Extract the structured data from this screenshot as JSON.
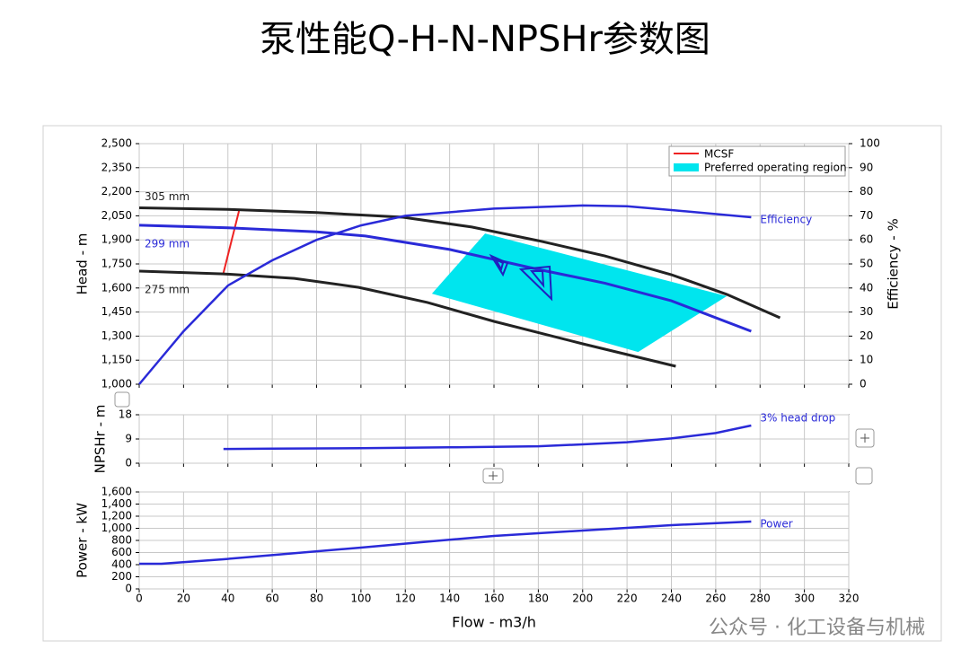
{
  "title": "泵性能Q-H-N-NPSHr参数图",
  "watermark": "公众号 · 化工设备与机械",
  "chart_data": [
    {
      "type": "line",
      "ylabel": "Head - m",
      "y2label": "Efficiency - %",
      "xlim": [
        0,
        320
      ],
      "ylim": [
        1000,
        2500
      ],
      "yticks": [
        {
          "value": 1000,
          "label": "1,000"
        },
        {
          "value": 1150,
          "label": "1,150"
        },
        {
          "value": 1300,
          "label": "1,300"
        },
        {
          "value": 1450,
          "label": "1,450"
        },
        {
          "value": 1600,
          "label": "1,600"
        },
        {
          "value": 1750,
          "label": "1,750"
        },
        {
          "value": 1900,
          "label": "1,900"
        },
        {
          "value": 2050,
          "label": "2,050"
        },
        {
          "value": 2200,
          "label": "2,200"
        },
        {
          "value": 2350,
          "label": "2,350"
        },
        {
          "value": 2500,
          "label": "2,500"
        }
      ],
      "y2lim": [
        0,
        100
      ],
      "y2ticks": [
        0,
        10,
        20,
        30,
        40,
        50,
        60,
        70,
        80,
        90,
        100
      ],
      "grid": true,
      "legend": "upper right",
      "region": {
        "name": "Preferred operating region",
        "color": "#00e5ee",
        "x": [
          156,
          265,
          225,
          132
        ],
        "values": [
          1940,
          1549,
          1201,
          1565
        ]
      },
      "mcsf": {
        "name": "MCSF",
        "color": "#ee2222",
        "x": [
          38,
          45
        ],
        "values": [
          1694,
          2080
        ]
      },
      "series": [
        {
          "name": "305 mm",
          "color": "#222222",
          "x": [
            0,
            40,
            80,
            119,
            150,
            180,
            210,
            240,
            265,
            289
          ],
          "values": [
            2100,
            2090,
            2070,
            2041,
            1980,
            1895,
            1800,
            1683,
            1560,
            1414
          ]
        },
        {
          "name": "299 mm",
          "color": "#2a2ad8",
          "x": [
            0,
            40,
            80,
            102,
            140,
            180,
            210,
            240,
            276
          ],
          "values": [
            1991,
            1975,
            1950,
            1924,
            1840,
            1716,
            1630,
            1520,
            1330
          ]
        },
        {
          "name": "275 mm",
          "color": "#222222",
          "x": [
            0,
            38,
            70,
            99,
            130,
            160,
            200,
            242
          ],
          "values": [
            1705,
            1688,
            1660,
            1604,
            1510,
            1392,
            1252,
            1112
          ]
        },
        {
          "name": "Efficiency",
          "color": "#2a2ad8",
          "axis": "y2",
          "x": [
            0,
            10,
            20,
            40,
            60,
            80,
            100,
            120,
            160,
            200,
            220,
            240,
            276
          ],
          "values": [
            0,
            11,
            22,
            41,
            51.5,
            60,
            66,
            70,
            73,
            74.3,
            74,
            72.4,
            69.4
          ]
        }
      ]
    },
    {
      "type": "line",
      "ylabel": "NPSHr - m",
      "xlim": [
        0,
        320
      ],
      "ylim": [
        0,
        18
      ],
      "yticks": [
        0,
        9,
        18
      ],
      "grid": true,
      "series": [
        {
          "name": "3% head drop",
          "color": "#2a2ad8",
          "x": [
            38,
            60,
            100,
            140,
            180,
            200,
            220,
            240,
            260,
            276
          ],
          "values": [
            5.3,
            5.4,
            5.6,
            5.9,
            6.3,
            7,
            7.8,
            9.2,
            11.2,
            14
          ]
        }
      ]
    },
    {
      "type": "line",
      "xlabel": "Flow - m3/h",
      "ylabel": "Power - kW",
      "xlim": [
        0,
        320
      ],
      "xticks": [
        0,
        20,
        40,
        60,
        80,
        100,
        120,
        140,
        160,
        180,
        200,
        220,
        240,
        260,
        280,
        300,
        320
      ],
      "ylim": [
        0,
        1600
      ],
      "yticks": [
        0,
        200,
        400,
        600,
        800,
        {
          "value": 1000,
          "label": "1,000"
        },
        {
          "value": 1200,
          "label": "1,200"
        },
        {
          "value": 1400,
          "label": "1,400"
        },
        {
          "value": 1600,
          "label": "1,600"
        }
      ],
      "grid": true,
      "series": [
        {
          "name": "Power",
          "color": "#2a2ad8",
          "x": [
            0,
            10,
            38,
            70,
            100,
            130,
            160,
            200,
            240,
            276
          ],
          "values": [
            415,
            415,
            489,
            590,
            681,
            780,
            874,
            963,
            1052,
            1111
          ]
        }
      ]
    }
  ]
}
